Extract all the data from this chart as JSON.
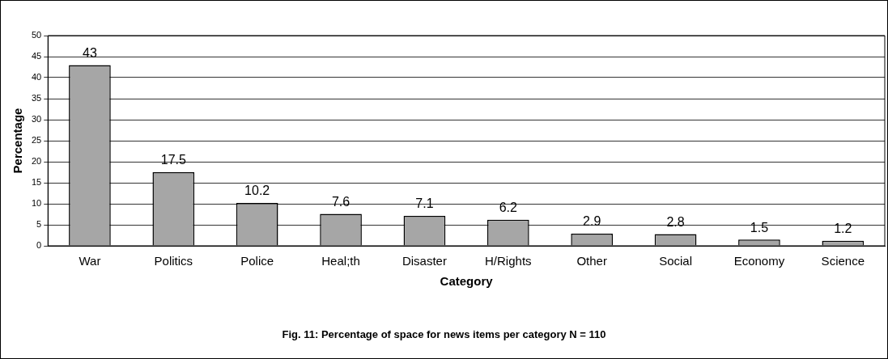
{
  "chart_data": {
    "type": "bar",
    "categories": [
      "War",
      "Politics",
      "Police",
      "Heal;th",
      "Disaster",
      "H/Rights",
      "Other",
      "Social",
      "Economy",
      "Science"
    ],
    "values": [
      43,
      17.5,
      10.2,
      7.6,
      7.1,
      6.2,
      2.9,
      2.8,
      1.5,
      1.2
    ],
    "color": "#a6a6a6",
    "ylim": [
      0,
      50
    ],
    "yticks": [
      0,
      5,
      10,
      15,
      20,
      25,
      30,
      35,
      40,
      45,
      50
    ],
    "ylabel": "Percentage",
    "xlabel": "Category",
    "grid": "y",
    "legend": false,
    "data_labels": true,
    "annotations": [
      "Fig. 11: Percentage of space for news items per category N = 110"
    ]
  }
}
